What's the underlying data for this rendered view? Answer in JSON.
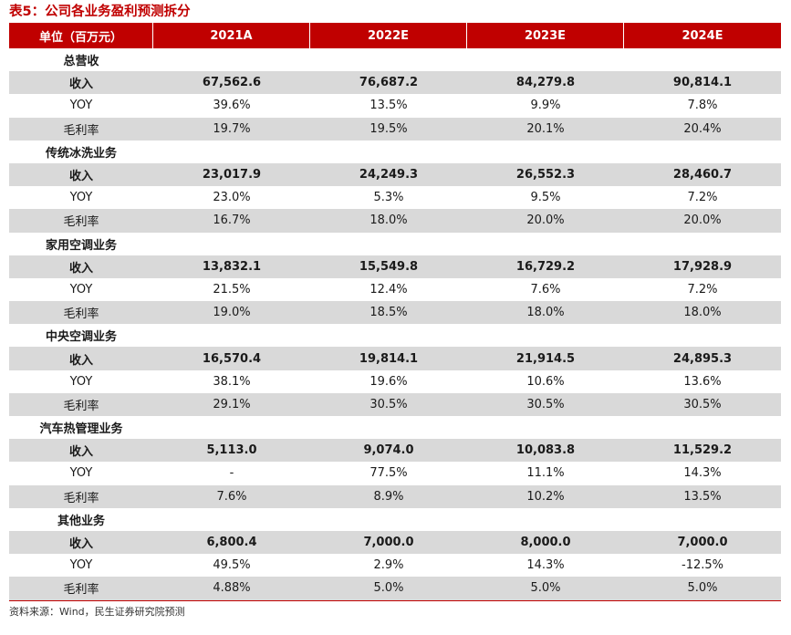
{
  "title": "表5：公司各业务盈利预测拆分",
  "header": [
    "单位（百万元）",
    "2021A",
    "2022E",
    "2023E",
    "2024E"
  ],
  "sections": [
    {
      "name": "总营收",
      "rows": [
        {
          "kind": "rev",
          "label": "收入",
          "values": [
            "67,562.6",
            "76,687.2",
            "84,279.8",
            "90,814.1"
          ]
        },
        {
          "kind": "yoy",
          "label": "YOY",
          "values": [
            "39.6%",
            "13.5%",
            "9.9%",
            "7.8%"
          ]
        },
        {
          "kind": "margin",
          "label": "毛利率",
          "values": [
            "19.7%",
            "19.5%",
            "20.1%",
            "20.4%"
          ]
        }
      ]
    },
    {
      "name": "传统冰洗业务",
      "rows": [
        {
          "kind": "rev",
          "label": "收入",
          "values": [
            "23,017.9",
            "24,249.3",
            "26,552.3",
            "28,460.7"
          ]
        },
        {
          "kind": "yoy",
          "label": "YOY",
          "values": [
            "23.0%",
            "5.3%",
            "9.5%",
            "7.2%"
          ]
        },
        {
          "kind": "margin",
          "label": "毛利率",
          "values": [
            "16.7%",
            "18.0%",
            "20.0%",
            "20.0%"
          ]
        }
      ]
    },
    {
      "name": "家用空调业务",
      "rows": [
        {
          "kind": "rev",
          "label": "收入",
          "values": [
            "13,832.1",
            "15,549.8",
            "16,729.2",
            "17,928.9"
          ]
        },
        {
          "kind": "yoy",
          "label": "YOY",
          "values": [
            "21.5%",
            "12.4%",
            "7.6%",
            "7.2%"
          ]
        },
        {
          "kind": "margin",
          "label": "毛利率",
          "values": [
            "19.0%",
            "18.5%",
            "18.0%",
            "18.0%"
          ]
        }
      ]
    },
    {
      "name": "中央空调业务",
      "rows": [
        {
          "kind": "rev",
          "label": "收入",
          "values": [
            "16,570.4",
            "19,814.1",
            "21,914.5",
            "24,895.3"
          ]
        },
        {
          "kind": "yoy",
          "label": "YOY",
          "values": [
            "38.1%",
            "19.6%",
            "10.6%",
            "13.6%"
          ]
        },
        {
          "kind": "margin",
          "label": "毛利率",
          "values": [
            "29.1%",
            "30.5%",
            "30.5%",
            "30.5%"
          ]
        }
      ]
    },
    {
      "name": "汽车热管理业务",
      "rows": [
        {
          "kind": "rev",
          "label": "收入",
          "values": [
            "5,113.0",
            "9,074.0",
            "10,083.8",
            "11,529.2"
          ]
        },
        {
          "kind": "yoy",
          "label": "YOY",
          "values": [
            "-",
            "77.5%",
            "11.1%",
            "14.3%"
          ]
        },
        {
          "kind": "margin",
          "label": "毛利率",
          "values": [
            "7.6%",
            "8.9%",
            "10.2%",
            "13.5%"
          ]
        }
      ]
    },
    {
      "name": "其他业务",
      "rows": [
        {
          "kind": "rev",
          "label": "收入",
          "values": [
            "6,800.4",
            "7,000.0",
            "8,000.0",
            "7,000.0"
          ]
        },
        {
          "kind": "yoy",
          "label": "YOY",
          "values": [
            "49.5%",
            "2.9%",
            "14.3%",
            "-12.5%"
          ]
        },
        {
          "kind": "margin",
          "label": "毛利率",
          "values": [
            "4.88%",
            "5.0%",
            "5.0%",
            "5.0%"
          ]
        }
      ]
    }
  ],
  "source": "资料来源：Wind，民生证券研究院预测",
  "colors": {
    "accent": "#c00000",
    "shade": "#d9d9d9"
  }
}
